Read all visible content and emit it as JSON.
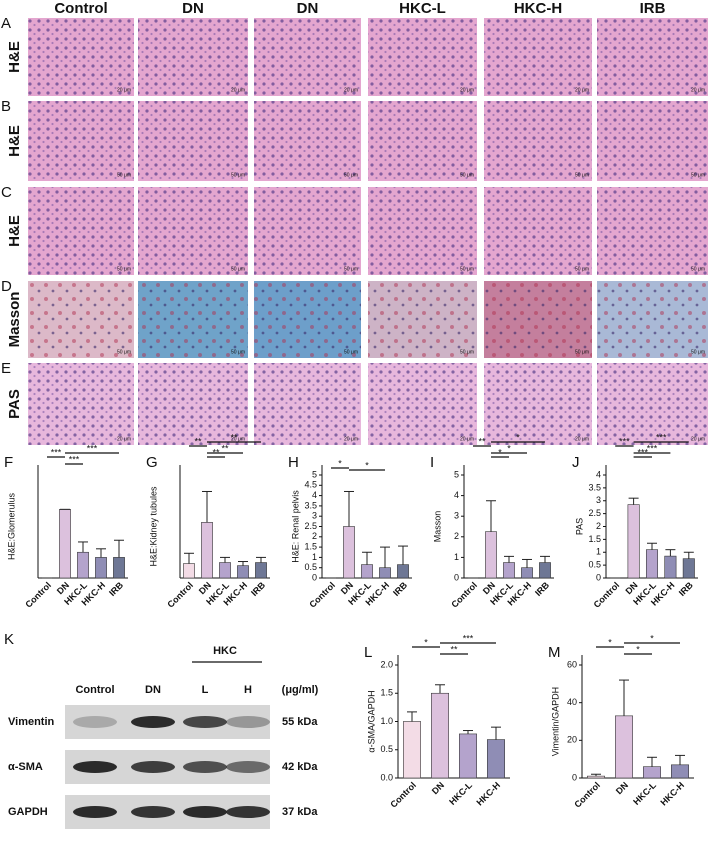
{
  "figure": {
    "columns": [
      "Control",
      "DN",
      "DN",
      "HKC-L",
      "HKC-H",
      "IRB"
    ],
    "rows": [
      {
        "letter": "A",
        "label": "H&E",
        "scale": "20 μm"
      },
      {
        "letter": "B",
        "label": "H&E",
        "scale": "50 μm"
      },
      {
        "letter": "C",
        "label": "H&E",
        "scale": "50 μm"
      },
      {
        "letter": "D",
        "label": "Masson",
        "scale": "50 μm"
      },
      {
        "letter": "E",
        "label": "PAS",
        "scale": "20 μm"
      }
    ]
  },
  "western_blot": {
    "letter": "K",
    "group": "HKC",
    "lanes": [
      "Control",
      "DN",
      "L",
      "H"
    ],
    "unit": "(μg/ml)",
    "proteins": [
      {
        "name": "Vimentin",
        "size": "55 kDa"
      },
      {
        "name": "α-SMA",
        "size": "42 kDa"
      },
      {
        "name": "GAPDH",
        "size": "37 kDa"
      }
    ]
  },
  "chart_data": [
    {
      "type": "bar",
      "letter": "F",
      "ylabel": "H&E:Glomerulus",
      "categories": [
        "Control",
        "DN",
        "HKC-L",
        "HKC-H",
        "IRB"
      ],
      "values": [
        0,
        2,
        0.75,
        0.6,
        0.6
      ],
      "errors": [
        0,
        0,
        0.3,
        0.25,
        0.5
      ],
      "colors": [
        "#f3dce6",
        "#dcc1dd",
        "#b4a3cc",
        "#8f8db5",
        "#6e7795"
      ],
      "ylim": [
        0,
        3
      ],
      "yticks": [],
      "brackets": [
        {
          "pair": [
            0,
            1
          ],
          "label": "***"
        },
        {
          "pair": [
            1,
            2
          ],
          "label": "***"
        },
        {
          "pair": [
            1,
            4
          ],
          "label": "***"
        }
      ]
    },
    {
      "type": "bar",
      "letter": "G",
      "ylabel": "H&E:Kidney tubules",
      "categories": [
        "Control",
        "DN",
        "HKC-L",
        "HKC-H",
        "IRB"
      ],
      "values": [
        0.7,
        2.7,
        0.75,
        0.6,
        0.75
      ],
      "errors": [
        0.5,
        1.5,
        0.25,
        0.2,
        0.25
      ],
      "colors": [
        "#f3dce6",
        "#dcc1dd",
        "#b4a3cc",
        "#8f8db5",
        "#6e7795"
      ],
      "ylim": [
        0,
        5
      ],
      "yticks": [],
      "brackets": [
        {
          "pair": [
            0,
            1
          ],
          "label": "**"
        },
        {
          "pair": [
            1,
            2
          ],
          "label": "**"
        },
        {
          "pair": [
            1,
            3
          ],
          "label": "**"
        },
        {
          "pair": [
            1,
            4
          ],
          "label": "**"
        }
      ]
    },
    {
      "type": "bar",
      "letter": "H",
      "ylabel": "H&E: Renal pelvis",
      "categories": [
        "Control",
        "DN",
        "HKC-L",
        "HKC-H",
        "IRB"
      ],
      "values": [
        0,
        2.5,
        0.65,
        0.5,
        0.65
      ],
      "errors": [
        0,
        1.7,
        0.6,
        1.0,
        0.9
      ],
      "colors": [
        "#f3dce6",
        "#dcc1dd",
        "#b4a3cc",
        "#8f8db5",
        "#6e7795"
      ],
      "ylim": [
        0,
        5
      ],
      "yticks": [
        0,
        0.5,
        1,
        1.5,
        2,
        2.5,
        3,
        3.5,
        4,
        4.5,
        5
      ],
      "brackets": [
        {
          "pair": [
            0,
            1
          ],
          "label": "*"
        },
        {
          "pair": [
            1,
            3
          ],
          "label": "*"
        }
      ]
    },
    {
      "type": "bar",
      "letter": "I",
      "ylabel": "Masson",
      "categories": [
        "Control",
        "DN",
        "HKC-L",
        "HKC-H",
        "IRB"
      ],
      "values": [
        0,
        2.25,
        0.75,
        0.5,
        0.75
      ],
      "errors": [
        0,
        1.5,
        0.3,
        0.4,
        0.3
      ],
      "colors": [
        "#f3dce6",
        "#dcc1dd",
        "#b4a3cc",
        "#8f8db5",
        "#6e7795"
      ],
      "ylim": [
        0,
        5
      ],
      "yticks": [
        0,
        1,
        2,
        3,
        4,
        5
      ],
      "brackets": [
        {
          "pair": [
            0,
            1
          ],
          "label": "**"
        },
        {
          "pair": [
            1,
            2
          ],
          "label": "*"
        },
        {
          "pair": [
            1,
            3
          ],
          "label": "*"
        },
        {
          "pair": [
            1,
            4
          ],
          "label": "*"
        }
      ]
    },
    {
      "type": "bar",
      "letter": "J",
      "ylabel": "PAS",
      "categories": [
        "Control",
        "DN",
        "HKC-L",
        "HKC-H",
        "IRB"
      ],
      "values": [
        0,
        2.85,
        1.1,
        0.85,
        0.75
      ],
      "errors": [
        0,
        0.25,
        0.25,
        0.25,
        0.25
      ],
      "colors": [
        "#f3dce6",
        "#dcc1dd",
        "#b4a3cc",
        "#8f8db5",
        "#6e7795"
      ],
      "ylim": [
        0,
        4
      ],
      "yticks": [
        0,
        0.5,
        1,
        1.5,
        2,
        2.5,
        3,
        3.5,
        4
      ],
      "brackets": [
        {
          "pair": [
            0,
            1
          ],
          "label": "***"
        },
        {
          "pair": [
            1,
            2
          ],
          "label": "***"
        },
        {
          "pair": [
            1,
            3
          ],
          "label": "***"
        },
        {
          "pair": [
            1,
            4
          ],
          "label": "***"
        }
      ]
    },
    {
      "type": "bar",
      "letter": "L",
      "ylabel": "α-SMA/GAPDH",
      "categories": [
        "Control",
        "DN",
        "HKC-L",
        "HKC-H"
      ],
      "values": [
        1.0,
        1.5,
        0.78,
        0.68
      ],
      "errors": [
        0.17,
        0.15,
        0.06,
        0.22
      ],
      "colors": [
        "#f3dce6",
        "#dcc1dd",
        "#b4a3cc",
        "#8f8db5"
      ],
      "ylim": [
        0,
        2
      ],
      "yticks": [
        {
          "value": 0,
          "label": "0.0"
        },
        0.5,
        {
          "value": 1,
          "label": "1.0"
        },
        1.5,
        {
          "value": 2,
          "label": "2.0"
        }
      ],
      "brackets": [
        {
          "pair": [
            0,
            1
          ],
          "label": "*"
        },
        {
          "pair": [
            1,
            2
          ],
          "label": "**"
        },
        {
          "pair": [
            1,
            3
          ],
          "label": "***"
        }
      ]
    },
    {
      "type": "bar",
      "letter": "M",
      "ylabel": "Vimentin/GAPDH",
      "categories": [
        "Control",
        "DN",
        "HKC-L",
        "HKC-H"
      ],
      "values": [
        1,
        33,
        6,
        7
      ],
      "errors": [
        1,
        19,
        5,
        5
      ],
      "colors": [
        "#f3dce6",
        "#dcc1dd",
        "#b4a3cc",
        "#8f8db5"
      ],
      "ylim": [
        0,
        60
      ],
      "yticks": [
        0,
        20,
        40,
        60
      ],
      "brackets": [
        {
          "pair": [
            0,
            1
          ],
          "label": "*"
        },
        {
          "pair": [
            1,
            2
          ],
          "label": "*"
        },
        {
          "pair": [
            1,
            3
          ],
          "label": "*"
        }
      ]
    }
  ]
}
